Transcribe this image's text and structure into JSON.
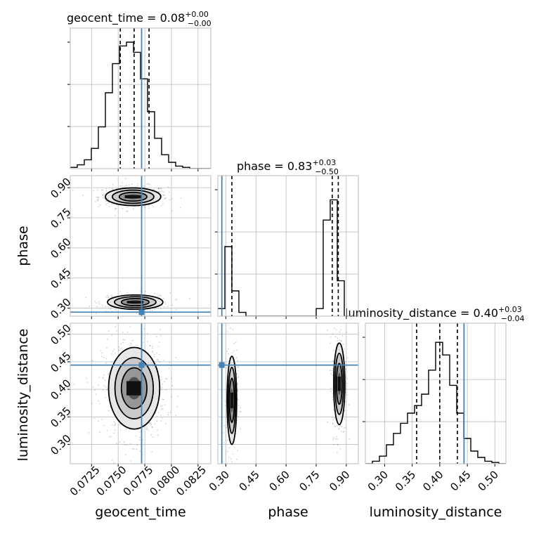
{
  "figure": {
    "params": [
      "geocent_time",
      "phase",
      "luminosity_distance"
    ],
    "titles": [
      {
        "name": "geocent_time",
        "value": "0.08",
        "plus": "+0.00",
        "minus": "−0.00"
      },
      {
        "name": "phase",
        "value": "0.83",
        "plus": "+0.03",
        "minus": "−0.50"
      },
      {
        "name": "luminosity_distance",
        "value": "0.40",
        "plus": "+0.03",
        "minus": "−0.04"
      }
    ],
    "axis_labels": {
      "x": [
        "geocent_time",
        "phase",
        "luminosity_distance"
      ],
      "y": [
        "phase",
        "luminosity_distance"
      ]
    },
    "tick_labels": {
      "geocent_time": [
        "0.0725",
        "0.0750",
        "0.0775",
        "0.0800",
        "0.0825"
      ],
      "phase": [
        "0.30",
        "0.45",
        "0.60",
        "0.75",
        "0.90"
      ],
      "luminosity_distance": [
        "0.30",
        "0.35",
        "0.40",
        "0.45",
        "0.50"
      ]
    },
    "colors": {
      "truth": "#4682b4",
      "hist": "#000000",
      "grid": "#bbbbbb",
      "frame": "#bbbbbb",
      "quantile": "#000000"
    }
  },
  "chart_data": {
    "type": "corner",
    "parameters": [
      "geocent_time",
      "phase",
      "luminosity_distance"
    ],
    "ranges": {
      "geocent_time": [
        0.0705,
        0.0837
      ],
      "phase": [
        0.26,
        0.96
      ],
      "luminosity_distance": [
        0.265,
        0.52
      ]
    },
    "ticks": {
      "geocent_time": [
        0.0725,
        0.075,
        0.0775,
        0.08,
        0.0825
      ],
      "phase": [
        0.3,
        0.45,
        0.6,
        0.75,
        0.9
      ],
      "luminosity_distance": [
        0.3,
        0.35,
        0.4,
        0.45,
        0.5
      ]
    },
    "truths": {
      "geocent_time": 0.0772,
      "phase": 0.28,
      "luminosity_distance": 0.444
    },
    "quantiles": {
      "geocent_time": [
        0.0752,
        0.0765,
        0.0779
      ],
      "phase": [
        0.33,
        0.83,
        0.86
      ],
      "luminosity_distance": [
        0.358,
        0.4,
        0.432
      ]
    },
    "histograms": {
      "geocent_time": {
        "edges": [
          0.0705,
          0.07116,
          0.07182,
          0.07248,
          0.07314,
          0.0738,
          0.07446,
          0.07512,
          0.07578,
          0.07644,
          0.0771,
          0.07776,
          0.07842,
          0.07908,
          0.07974,
          0.0804,
          0.08106,
          0.08172,
          0.08238,
          0.08304,
          0.0837
        ],
        "counts": [
          0.01,
          0.03,
          0.07,
          0.16,
          0.33,
          0.6,
          0.83,
          0.97,
          1.0,
          0.92,
          0.71,
          0.45,
          0.24,
          0.11,
          0.05,
          0.02,
          0.01,
          0.0,
          0.0,
          0.0
        ]
      },
      "phase": {
        "edges": [
          0.26,
          0.295,
          0.33,
          0.365,
          0.4,
          0.435,
          0.47,
          0.505,
          0.54,
          0.575,
          0.61,
          0.645,
          0.68,
          0.715,
          0.75,
          0.785,
          0.82,
          0.855,
          0.89,
          0.925,
          0.96
        ],
        "counts": [
          0.06,
          0.55,
          0.2,
          0.03,
          0.0,
          0.0,
          0.0,
          0.0,
          0.0,
          0.0,
          0.0,
          0.0,
          0.0,
          0.0,
          0.06,
          0.76,
          0.92,
          0.28,
          0.0,
          0.0
        ]
      },
      "luminosity_distance": {
        "edges": [
          0.265,
          0.27775,
          0.2905,
          0.30325,
          0.316,
          0.32875,
          0.3415,
          0.35425,
          0.367,
          0.37975,
          0.3925,
          0.40525,
          0.418,
          0.43075,
          0.4435,
          0.45625,
          0.469,
          0.48175,
          0.4945,
          0.50725,
          0.52
        ],
        "counts": [
          0.0,
          0.02,
          0.06,
          0.15,
          0.24,
          0.32,
          0.4,
          0.46,
          0.55,
          0.74,
          0.96,
          0.86,
          0.62,
          0.4,
          0.2,
          0.1,
          0.05,
          0.02,
          0.01,
          0.0
        ]
      }
    },
    "blobs": [
      {
        "x": "geocent_time",
        "y": "phase",
        "modes": [
          {
            "cx": 0.0764,
            "cy": 0.855,
            "sx": 0.0013,
            "sy": 0.022,
            "w": 0.62
          },
          {
            "cx": 0.0766,
            "cy": 0.33,
            "sx": 0.0013,
            "sy": 0.018,
            "w": 0.38
          }
        ]
      },
      {
        "x": "geocent_time",
        "y": "luminosity_distance",
        "modes": [
          {
            "cx": 0.0765,
            "cy": 0.402,
            "sx": 0.0012,
            "sy": 0.037,
            "w": 1.0
          }
        ]
      },
      {
        "x": "phase",
        "y": "luminosity_distance",
        "modes": [
          {
            "cx": 0.33,
            "cy": 0.38,
            "sx": 0.012,
            "sy": 0.04,
            "w": 0.38
          },
          {
            "cx": 0.865,
            "cy": 0.41,
            "sx": 0.014,
            "sy": 0.037,
            "w": 0.62
          }
        ]
      }
    ]
  }
}
